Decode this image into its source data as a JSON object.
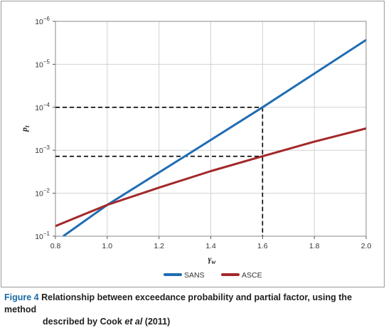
{
  "caption": {
    "figure_label": "Figure 4",
    "text_line1": "Relationship between exceedance probability and partial factor, using the method",
    "text_line2_prefix": "described by Cook ",
    "text_line2_italic": "et al",
    "text_line2_suffix": " (2011)"
  },
  "chart_data": {
    "type": "line",
    "title": "",
    "xlabel": "γw",
    "ylabel": "pt",
    "xlim": [
      0.8,
      2.0
    ],
    "x_ticks": [
      0.8,
      1.0,
      1.2,
      1.4,
      1.6,
      1.8,
      2.0
    ],
    "x_tick_labels": [
      "0.8",
      "1.0",
      "1.2",
      "1.4",
      "1.6",
      "1.8",
      "2.0"
    ],
    "y_scale": "log",
    "y_axis_inverted": true,
    "y_ticks": [
      0.1,
      0.01,
      0.001,
      0.0001,
      1e-05,
      1e-06
    ],
    "y_tick_labels": [
      {
        "base": "10",
        "exp": "−1"
      },
      {
        "base": "10",
        "exp": "−2"
      },
      {
        "base": "10",
        "exp": "−3"
      },
      {
        "base": "10",
        "exp": "−4"
      },
      {
        "base": "10",
        "exp": "−5"
      },
      {
        "base": "10",
        "exp": "−6"
      }
    ],
    "grid": true,
    "legend_position": "bottom-center",
    "series": [
      {
        "name": "SANS",
        "color": "#1f6db3",
        "x": [
          0.83,
          1.0,
          1.3,
          1.6,
          2.0
        ],
        "y": [
          0.1,
          0.0187,
          0.00138,
          0.0001,
          2.7e-06
        ]
      },
      {
        "name": "ASCE",
        "color": "#a3282a",
        "x": [
          0.8,
          1.0,
          1.2,
          1.4,
          1.6,
          1.8,
          2.0
        ],
        "y": [
          0.058,
          0.0187,
          0.0074,
          0.00305,
          0.00138,
          0.00063,
          0.00031
        ]
      }
    ],
    "reference_lines": [
      {
        "style": "dashed",
        "from": {
          "x": 0.8,
          "y": 0.0001
        },
        "to": {
          "x": 1.6,
          "y": 0.0001
        }
      },
      {
        "style": "dashed",
        "from": {
          "x": 0.8,
          "y": 0.00138
        },
        "to": {
          "x": 1.6,
          "y": 0.00138
        }
      },
      {
        "style": "dashed",
        "from": {
          "x": 1.6,
          "y": 0.0001
        },
        "to": {
          "x": 1.6,
          "y": 0.1
        }
      }
    ]
  }
}
